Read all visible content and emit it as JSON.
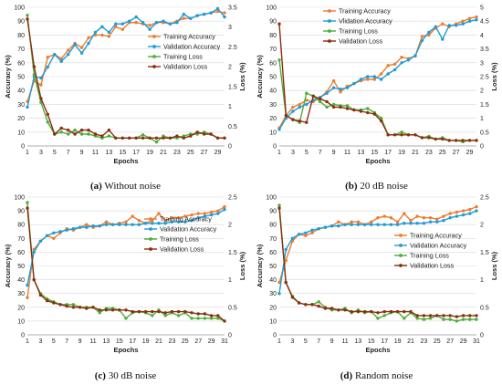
{
  "colors": {
    "training_accuracy": "#ED7D31",
    "validation_accuracy": "#1F9BD7",
    "training_loss": "#4DAE3A",
    "validation_loss": "#8B2E0F"
  },
  "captions": [
    {
      "letter": "(a)",
      "text": "Without noise"
    },
    {
      "letter": "(b)",
      "text": "20 dB noise"
    },
    {
      "letter": "(c)",
      "text": "30 dB noise"
    },
    {
      "letter": "(d)",
      "text": "Random noise"
    }
  ],
  "chart_data": [
    {
      "type": "line",
      "xlabel": "Epochs",
      "ylabel": "Accuracy (%)",
      "y2label": "Loss (%)",
      "xticks": [
        "1",
        "3",
        "5",
        "7",
        "9",
        "11",
        "13",
        "15",
        "17",
        "19",
        "21",
        "23",
        "25",
        "27",
        "29"
      ],
      "xlim": [
        1,
        30
      ],
      "ylim": [
        0,
        100
      ],
      "y2lim": [
        0,
        3.5
      ],
      "yticks": [
        0,
        10,
        20,
        30,
        40,
        50,
        60,
        70,
        80,
        90,
        100
      ],
      "y2ticks": [
        0,
        0.5,
        1,
        1.5,
        2,
        2.5,
        3,
        3.5
      ],
      "y2tick_labels": [
        "0",
        "0.5",
        "1",
        "1.5",
        "2",
        "2.5",
        "3",
        "3.5"
      ],
      "legend_position": "center-right",
      "x": [
        1,
        2,
        3,
        4,
        5,
        6,
        7,
        8,
        9,
        10,
        11,
        12,
        13,
        14,
        15,
        16,
        17,
        18,
        19,
        20,
        21,
        22,
        23,
        24,
        25,
        26,
        27,
        28,
        29,
        30
      ],
      "series": [
        {
          "name": "Training Accuracy",
          "axis": "left",
          "color_key": "training_accuracy",
          "values": [
            32,
            47,
            44,
            64,
            66,
            63,
            69,
            74,
            71,
            78,
            80,
            80,
            79,
            86,
            84,
            89,
            89,
            88,
            87,
            89,
            89,
            88,
            90,
            92,
            92,
            94,
            95,
            96,
            97,
            96
          ]
        },
        {
          "name": "Validation Accuracy",
          "axis": "left",
          "color_key": "validation_accuracy",
          "values": [
            28,
            50,
            49,
            57,
            66,
            61,
            66,
            73,
            67,
            74,
            82,
            86,
            82,
            88,
            88,
            90,
            93,
            89,
            84,
            89,
            90,
            88,
            89,
            95,
            92,
            94,
            95,
            96,
            99,
            93
          ]
        },
        {
          "name": "Training Loss",
          "axis": "right",
          "color_key": "training_loss",
          "values": [
            3.3,
            1.8,
            1.1,
            0.6,
            0.3,
            0.35,
            0.3,
            0.4,
            0.3,
            0.3,
            0.25,
            0.2,
            0.25,
            0.2,
            0.2,
            0.2,
            0.2,
            0.28,
            0.2,
            0.1,
            0.25,
            0.2,
            0.2,
            0.25,
            0.3,
            0.3,
            0.35,
            0.3,
            0.2,
            0.2
          ]
        },
        {
          "name": "Validation Loss",
          "axis": "right",
          "color_key": "validation_loss",
          "values": [
            3.2,
            2.0,
            1.2,
            0.8,
            0.3,
            0.45,
            0.4,
            0.3,
            0.4,
            0.4,
            0.3,
            0.25,
            0.4,
            0.2,
            0.2,
            0.2,
            0.2,
            0.2,
            0.2,
            0.2,
            0.2,
            0.2,
            0.25,
            0.2,
            0.25,
            0.35,
            0.3,
            0.3,
            0.2,
            0.2
          ]
        }
      ]
    },
    {
      "type": "line",
      "xlabel": "Epochs",
      "ylabel": "Accuracy (%)",
      "y2label": "Loss (%)",
      "xticks": [
        "1",
        "3",
        "5",
        "7",
        "9",
        "11",
        "13",
        "15",
        "17",
        "19",
        "21",
        "23",
        "25",
        "27",
        "29"
      ],
      "xlim": [
        1,
        30
      ],
      "ylim": [
        0,
        100
      ],
      "y2lim": [
        0,
        5
      ],
      "yticks": [
        0,
        10,
        20,
        30,
        40,
        50,
        60,
        70,
        80,
        90,
        100
      ],
      "y2ticks": [
        0,
        0.5,
        1,
        1.5,
        2,
        2.5,
        3,
        3.5,
        4,
        4.5,
        5
      ],
      "y2tick_labels": [
        "0",
        "0.5",
        "1",
        "1.5",
        "2",
        "2.5",
        "3",
        "3.5",
        "4",
        "4.5",
        "5"
      ],
      "legend_position": "top-right",
      "x": [
        1,
        2,
        3,
        4,
        5,
        6,
        7,
        8,
        9,
        10,
        11,
        12,
        13,
        14,
        15,
        16,
        17,
        18,
        19,
        20,
        21,
        22,
        23,
        24,
        25,
        26,
        27,
        28,
        29,
        30
      ],
      "series": [
        {
          "name": "Training Accuracy",
          "axis": "left",
          "color_key": "training_accuracy",
          "values": [
            13,
            22,
            28,
            30,
            33,
            32,
            35,
            39,
            47,
            39,
            43,
            45,
            47,
            48,
            48,
            52,
            58,
            59,
            64,
            63,
            65,
            79,
            80,
            85,
            88,
            86,
            88,
            90,
            92,
            93
          ]
        },
        {
          "name": "Vlidation Accuracy",
          "axis": "left",
          "color_key": "validation_accuracy",
          "values": [
            12,
            20,
            25,
            28,
            30,
            33,
            35,
            38,
            42,
            41,
            42,
            45,
            48,
            50,
            50,
            48,
            52,
            55,
            60,
            62,
            65,
            76,
            82,
            86,
            77,
            87,
            87,
            88,
            90,
            91
          ]
        },
        {
          "name": "Training Loss",
          "axis": "right",
          "color_key": "training_loss",
          "values": [
            3.1,
            1.1,
            0.95,
            0.85,
            1.9,
            1.8,
            1.6,
            1.4,
            1.5,
            1.45,
            1.45,
            1.3,
            1.3,
            1.35,
            1.2,
            1.0,
            0.4,
            0.4,
            0.5,
            0.4,
            0.4,
            0.3,
            0.35,
            0.25,
            0.3,
            0.2,
            0.2,
            0.15,
            0.2,
            0.2
          ]
        },
        {
          "name": "Validation Loss",
          "axis": "right",
          "color_key": "validation_loss",
          "values": [
            4.4,
            1.1,
            0.95,
            0.9,
            0.85,
            1.8,
            1.7,
            1.6,
            1.4,
            1.4,
            1.35,
            1.3,
            1.25,
            1.2,
            1.15,
            0.9,
            0.4,
            0.4,
            0.4,
            0.4,
            0.4,
            0.3,
            0.3,
            0.25,
            0.25,
            0.2,
            0.2,
            0.2,
            0.2,
            0.2
          ]
        }
      ]
    },
    {
      "type": "line",
      "xlabel": "Epochs",
      "ylabel": "Accuracy (%)",
      "y2label": "Loss (%)",
      "xticks": [
        "1",
        "3",
        "5",
        "7",
        "9",
        "11",
        "13",
        "15",
        "17",
        "19",
        "21",
        "23",
        "25",
        "27",
        "29",
        "31"
      ],
      "xlim": [
        1,
        31
      ],
      "ylim": [
        0,
        100
      ],
      "y2lim": [
        0,
        2.5
      ],
      "yticks": [
        0,
        10,
        20,
        30,
        40,
        50,
        60,
        70,
        80,
        90,
        100
      ],
      "y2ticks": [
        0,
        0.5,
        1,
        1.5,
        2,
        2.5
      ],
      "y2tick_labels": [
        "0",
        "0.5",
        "1",
        "1.5",
        "2",
        "2.5"
      ],
      "legend_position": "center-right",
      "x": [
        1,
        2,
        3,
        4,
        5,
        6,
        7,
        8,
        9,
        10,
        11,
        12,
        13,
        14,
        15,
        16,
        17,
        18,
        19,
        20,
        21,
        22,
        23,
        24,
        25,
        26,
        27,
        28,
        29,
        30,
        31
      ],
      "series": [
        {
          "name": "Training Accuracy",
          "axis": "left",
          "color_key": "training_accuracy",
          "values": [
            27,
            62,
            68,
            72,
            70,
            74,
            77,
            76,
            78,
            80,
            78,
            79,
            82,
            80,
            81,
            82,
            86,
            83,
            81,
            83,
            88,
            83,
            85,
            85,
            86,
            87,
            88,
            88,
            89,
            90,
            93
          ]
        },
        {
          "name": "Validation Accuracy",
          "axis": "left",
          "color_key": "validation_accuracy",
          "values": [
            36,
            60,
            68,
            72,
            74,
            75,
            76,
            77,
            78,
            78,
            79,
            79,
            80,
            80,
            80,
            80,
            80,
            80,
            81,
            81,
            81,
            81,
            82,
            82,
            82,
            83,
            85,
            86,
            87,
            88,
            91
          ]
        },
        {
          "name": "Training Loss",
          "axis": "right",
          "color_key": "training_loss",
          "values": [
            2.4,
            1.0,
            0.75,
            0.65,
            0.6,
            0.55,
            0.55,
            0.55,
            0.5,
            0.5,
            0.5,
            0.4,
            0.48,
            0.48,
            0.45,
            0.3,
            0.4,
            0.42,
            0.4,
            0.35,
            0.45,
            0.35,
            0.4,
            0.35,
            0.4,
            0.3,
            0.3,
            0.3,
            0.3,
            0.3,
            0.25
          ]
        },
        {
          "name": "Validation Loss",
          "axis": "right",
          "color_key": "validation_loss",
          "values": [
            2.3,
            1.0,
            0.72,
            0.62,
            0.58,
            0.55,
            0.52,
            0.5,
            0.5,
            0.48,
            0.5,
            0.45,
            0.45,
            0.45,
            0.45,
            0.45,
            0.42,
            0.42,
            0.42,
            0.42,
            0.42,
            0.4,
            0.42,
            0.42,
            0.42,
            0.4,
            0.38,
            0.38,
            0.35,
            0.35,
            0.25
          ]
        }
      ]
    },
    {
      "type": "line",
      "xlabel": "Epochs",
      "ylabel": "Accuracy (%)",
      "y2label": "Loss (%)",
      "xticks": [
        "1",
        "3",
        "5",
        "7",
        "9",
        "11",
        "13",
        "15",
        "17",
        "19",
        "21",
        "23",
        "25",
        "27",
        "29",
        "31"
      ],
      "xlim": [
        1,
        31
      ],
      "ylim": [
        0,
        100
      ],
      "y2lim": [
        0,
        2.5
      ],
      "yticks": [
        0,
        10,
        20,
        30,
        40,
        50,
        60,
        70,
        80,
        90,
        100
      ],
      "y2ticks": [
        0,
        0.5,
        1,
        1.5,
        2,
        2.5
      ],
      "y2tick_labels": [
        "0",
        "0.5",
        "1",
        "1.5",
        "2",
        "2.5"
      ],
      "legend_position": "center-right",
      "x": [
        1,
        2,
        3,
        4,
        5,
        6,
        7,
        8,
        9,
        10,
        11,
        12,
        13,
        14,
        15,
        16,
        17,
        18,
        19,
        20,
        21,
        22,
        23,
        24,
        25,
        26,
        27,
        28,
        29,
        30,
        31
      ],
      "series": [
        {
          "name": "Training Accuracy",
          "axis": "left",
          "color_key": "training_accuracy",
          "values": [
            38,
            54,
            68,
            73,
            72,
            74,
            77,
            78,
            79,
            82,
            80,
            82,
            82,
            80,
            82,
            85,
            86,
            85,
            82,
            88,
            83,
            86,
            85,
            85,
            84,
            86,
            88,
            89,
            90,
            91,
            93
          ]
        },
        {
          "name": "Validation Accuracy",
          "axis": "left",
          "color_key": "validation_accuracy",
          "values": [
            30,
            62,
            70,
            73,
            74,
            76,
            77,
            78,
            79,
            79,
            80,
            80,
            80,
            80,
            80,
            80,
            80,
            80,
            80,
            81,
            81,
            81,
            81,
            82,
            82,
            83,
            85,
            86,
            87,
            88,
            90
          ]
        },
        {
          "name": "Training Loss",
          "axis": "right",
          "color_key": "training_loss",
          "values": [
            2.35,
            0.95,
            0.7,
            0.58,
            0.55,
            0.55,
            0.6,
            0.5,
            0.45,
            0.45,
            0.48,
            0.4,
            0.45,
            0.4,
            0.42,
            0.3,
            0.35,
            0.4,
            0.42,
            0.3,
            0.4,
            0.3,
            0.28,
            0.3,
            0.35,
            0.28,
            0.28,
            0.25,
            0.28,
            0.28,
            0.28
          ]
        },
        {
          "name": "Validation Loss",
          "axis": "right",
          "color_key": "validation_loss",
          "values": [
            2.3,
            0.95,
            0.68,
            0.58,
            0.55,
            0.55,
            0.52,
            0.48,
            0.48,
            0.45,
            0.45,
            0.42,
            0.42,
            0.42,
            0.42,
            0.4,
            0.42,
            0.42,
            0.42,
            0.42,
            0.42,
            0.35,
            0.35,
            0.35,
            0.35,
            0.35,
            0.35,
            0.33,
            0.35,
            0.35,
            0.35
          ]
        }
      ]
    }
  ]
}
